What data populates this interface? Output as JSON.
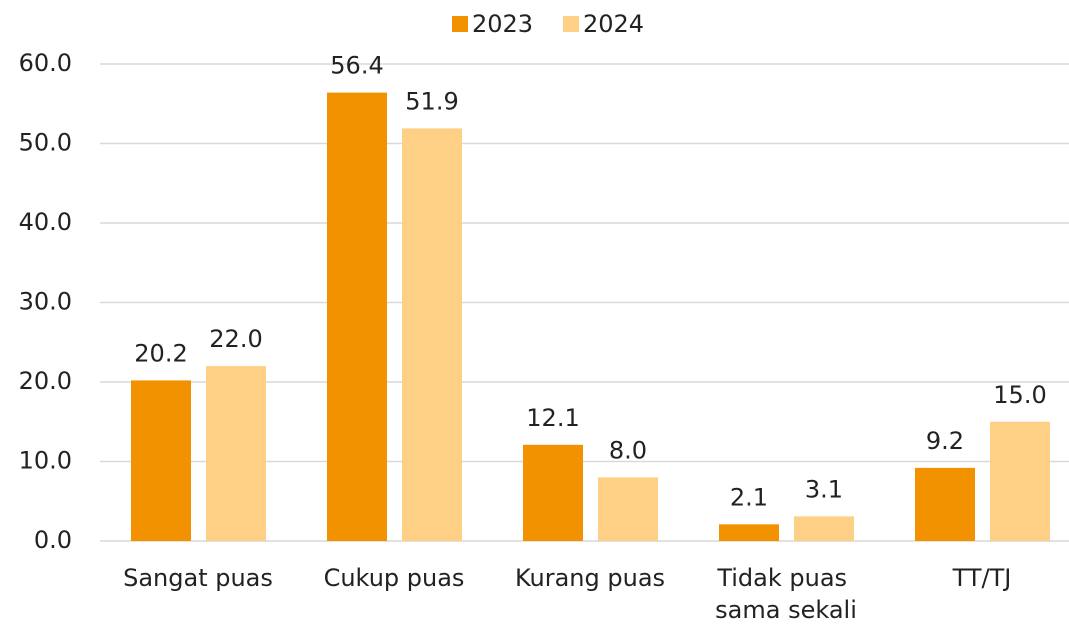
{
  "chart_data": {
    "type": "bar",
    "categories": [
      "Sangat puas",
      "Cukup puas",
      "Kurang puas",
      "Tidak puas sama sekali",
      "TT/TJ"
    ],
    "series": [
      {
        "name": "2023",
        "color": "#f39200",
        "values": [
          20.2,
          56.4,
          12.1,
          2.1,
          9.2
        ],
        "value_labels": [
          "20.2",
          "56.4",
          "12.1",
          "2.1",
          "9.2"
        ]
      },
      {
        "name": "2024",
        "color": "#fdd085",
        "values": [
          22.0,
          51.9,
          8.0,
          3.1,
          15.0
        ],
        "value_labels": [
          "22.0",
          "51.9",
          "8.0",
          "3.1",
          "15.0"
        ]
      }
    ],
    "ylim": [
      0,
      60
    ],
    "yticks": [
      {
        "value": 0,
        "label": "0.0"
      },
      {
        "value": 10,
        "label": "10.0"
      },
      {
        "value": 20,
        "label": "20.0"
      },
      {
        "value": 30,
        "label": "30.0"
      },
      {
        "value": 40,
        "label": "40.0"
      },
      {
        "value": 50,
        "label": "50.0"
      },
      {
        "value": 60,
        "label": "60.0"
      }
    ],
    "grid": true,
    "legend": "top"
  }
}
